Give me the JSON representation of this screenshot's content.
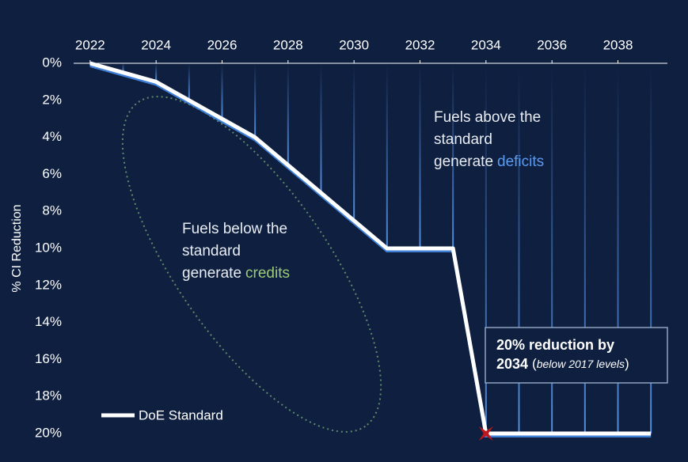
{
  "chart_data": {
    "type": "line",
    "y_label": "% CI Reduction",
    "x": [
      2022,
      2023,
      2024,
      2025,
      2026,
      2027,
      2028,
      2029,
      2030,
      2031,
      2032,
      2033,
      2034,
      2035,
      2036,
      2037,
      2038,
      2039
    ],
    "series": [
      {
        "name": "DoE Standard",
        "color": "#ffffff",
        "values": [
          0,
          0.5,
          1,
          2,
          3,
          4,
          5.5,
          7,
          8.5,
          10,
          10,
          10,
          20,
          20,
          20,
          20,
          20,
          20
        ]
      }
    ],
    "xlim": [
      2021.5,
      2039.5
    ],
    "xticks": [
      2022,
      2024,
      2026,
      2028,
      2030,
      2032,
      2034,
      2036,
      2038
    ],
    "ylim": [
      0,
      20
    ],
    "y_inverted": true,
    "yticks": [
      {
        "value": 0,
        "label": "0%"
      },
      {
        "value": 2,
        "label": "2%"
      },
      {
        "value": 4,
        "label": "4%"
      },
      {
        "value": 6,
        "label": "6%"
      },
      {
        "value": 8,
        "label": "8%"
      },
      {
        "value": 10,
        "label": "10%"
      },
      {
        "value": 12,
        "label": "12%"
      },
      {
        "value": 14,
        "label": "14%"
      },
      {
        "value": 16,
        "label": "16%"
      },
      {
        "value": 18,
        "label": "18%"
      },
      {
        "value": 20,
        "label": "20%"
      }
    ],
    "annotations": [
      {
        "lines": [
          "Fuels above the",
          "standard",
          "generate"
        ],
        "highlight": "deficits",
        "highlight_color": "#5b9bf0"
      },
      {
        "lines": [
          "Fuels below the",
          "standard",
          "generate"
        ],
        "highlight": "credits",
        "highlight_color": "#9cc97a"
      }
    ],
    "callout": {
      "lines": [
        "20% reduction by",
        "2034"
      ],
      "note": [
        "(",
        "below 2017 levels",
        ")"
      ]
    }
  }
}
